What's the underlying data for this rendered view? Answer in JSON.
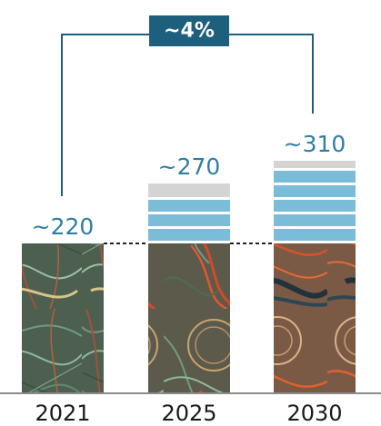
{
  "colors": {
    "accent": "#1f5f7e",
    "value_text": "#2e7ea6",
    "growth_bar": "#7bbcd8",
    "growth_gap": "#ffffff",
    "gray_bar": "#d4d4d4",
    "axis": "#8a8a8a",
    "year_text": "#1a1a1a",
    "badge_text": "#ffffff"
  },
  "chart_data": {
    "type": "bar",
    "categories": [
      "2021",
      "2025",
      "2030"
    ],
    "value_labels": [
      "~220",
      "~270",
      "~310"
    ],
    "values": [
      220,
      270,
      310
    ],
    "base_value": 220,
    "unlabeled_top_segment_value": [
      0,
      15,
      8
    ],
    "annotation": {
      "text": "~4%",
      "from": "2021",
      "to": "2030"
    },
    "title": "",
    "xlabel": "",
    "ylabel": "",
    "grid": false,
    "legend": "none"
  }
}
